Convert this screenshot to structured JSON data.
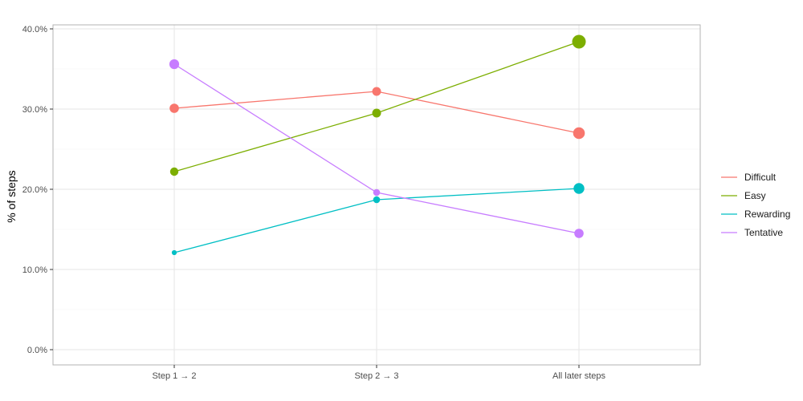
{
  "chart_data": {
    "type": "line",
    "categories": [
      "Step 1 → 2",
      "Step 2 → 3",
      "All later steps"
    ],
    "ylabel": "% of steps",
    "xlabel": "",
    "ylim": [
      0,
      0.4
    ],
    "y_ticks": [
      0.0,
      0.1,
      0.2,
      0.3,
      0.4
    ],
    "y_tick_labels": [
      "0.0%",
      "10.0%",
      "20.0%",
      "30.0%",
      "40.0%"
    ],
    "grid": true,
    "legend_position": "right",
    "point_size_varies": true,
    "series": [
      {
        "name": "Difficult",
        "color": "#F8766D",
        "values": [
          0.301,
          0.322,
          0.27
        ],
        "point_weight": [
          0.55,
          0.5,
          0.8
        ]
      },
      {
        "name": "Easy",
        "color": "#7CAE00",
        "values": [
          0.222,
          0.295,
          0.384
        ],
        "point_weight": [
          0.45,
          0.5,
          1.0
        ]
      },
      {
        "name": "Rewarding",
        "color": "#00BFC4",
        "values": [
          0.121,
          0.187,
          0.201
        ],
        "point_weight": [
          0.1,
          0.3,
          0.7
        ]
      },
      {
        "name": "Tentative",
        "color": "#C77CFF",
        "values": [
          0.356,
          0.196,
          0.145
        ],
        "point_weight": [
          0.6,
          0.3,
          0.55
        ]
      }
    ]
  }
}
